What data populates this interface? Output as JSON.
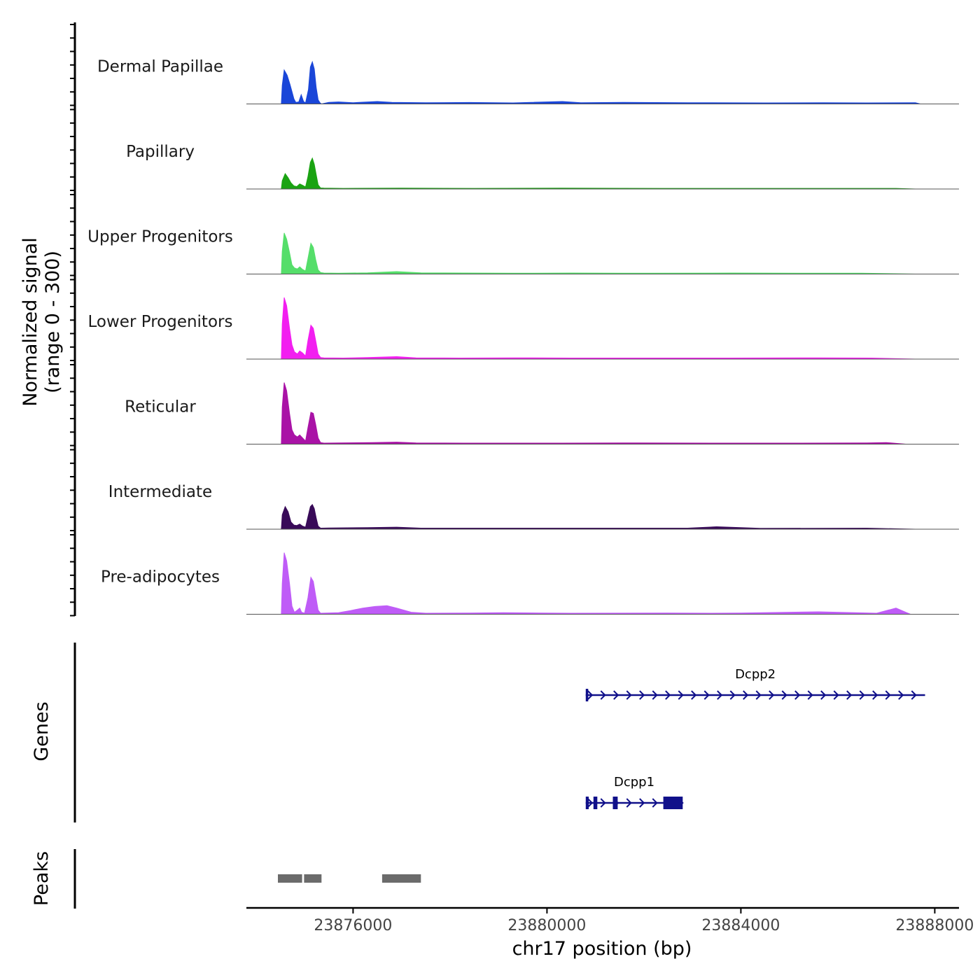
{
  "chart_data": {
    "type": "area",
    "title": "",
    "chromosome": "chr17",
    "xlabel": "chr17 position (bp)",
    "ylabel_line1": "Normalized signal",
    "ylabel_line2": "(range 0 - 300)",
    "ylim": [
      0,
      300
    ],
    "xlim": [
      23873800,
      23888500
    ],
    "x_ticks": [
      23876000,
      23880000,
      23884000,
      23888000
    ],
    "x_tick_labels": [
      "23876000",
      "23880000",
      "23884000",
      "23888000"
    ],
    "series": [
      {
        "name": "Dermal Papillae",
        "color": "#1a46d8",
        "points": [
          [
            23874520,
            0
          ],
          [
            23874540,
            90
          ],
          [
            23874580,
            165
          ],
          [
            23874640,
            140
          ],
          [
            23874700,
            95
          ],
          [
            23874740,
            60
          ],
          [
            23874780,
            25
          ],
          [
            23874820,
            8
          ],
          [
            23874880,
            10
          ],
          [
            23874930,
            45
          ],
          [
            23874980,
            12
          ],
          [
            23875020,
            5
          ],
          [
            23875080,
            70
          ],
          [
            23875120,
            180
          ],
          [
            23875160,
            205
          ],
          [
            23875200,
            170
          ],
          [
            23875240,
            80
          ],
          [
            23875280,
            20
          ],
          [
            23875320,
            5
          ],
          [
            23875350,
            0
          ],
          [
            23875500,
            8
          ],
          [
            23875700,
            10
          ],
          [
            23876000,
            6
          ],
          [
            23876500,
            12
          ],
          [
            23876800,
            8
          ],
          [
            23877500,
            6
          ],
          [
            23878400,
            7
          ],
          [
            23879300,
            5
          ],
          [
            23880320,
            12
          ],
          [
            23880700,
            6
          ],
          [
            23881600,
            8
          ],
          [
            23882900,
            6
          ],
          [
            23884500,
            5
          ],
          [
            23885700,
            6
          ],
          [
            23886600,
            5
          ],
          [
            23887600,
            6
          ],
          [
            23887700,
            0
          ]
        ]
      },
      {
        "name": "Papillary",
        "color": "#1aa312",
        "points": [
          [
            23874520,
            0
          ],
          [
            23874540,
            40
          ],
          [
            23874600,
            75
          ],
          [
            23874660,
            55
          ],
          [
            23874720,
            30
          ],
          [
            23874780,
            15
          ],
          [
            23874840,
            12
          ],
          [
            23874900,
            25
          ],
          [
            23874960,
            18
          ],
          [
            23875020,
            10
          ],
          [
            23875070,
            60
          ],
          [
            23875120,
            130
          ],
          [
            23875160,
            150
          ],
          [
            23875200,
            120
          ],
          [
            23875240,
            70
          ],
          [
            23875280,
            20
          ],
          [
            23875330,
            5
          ],
          [
            23875400,
            4
          ],
          [
            23875800,
            3
          ],
          [
            23877000,
            4
          ],
          [
            23878500,
            3
          ],
          [
            23880300,
            4
          ],
          [
            23882400,
            3
          ],
          [
            23884000,
            3
          ],
          [
            23885700,
            3
          ],
          [
            23887200,
            3
          ],
          [
            23887600,
            0
          ]
        ]
      },
      {
        "name": "Upper Progenitors",
        "color": "#55de6a",
        "points": [
          [
            23874520,
            0
          ],
          [
            23874540,
            110
          ],
          [
            23874580,
            200
          ],
          [
            23874630,
            170
          ],
          [
            23874690,
            105
          ],
          [
            23874740,
            45
          ],
          [
            23874790,
            30
          ],
          [
            23874850,
            25
          ],
          [
            23874900,
            35
          ],
          [
            23874960,
            22
          ],
          [
            23875020,
            15
          ],
          [
            23875070,
            75
          ],
          [
            23875130,
            150
          ],
          [
            23875180,
            130
          ],
          [
            23875230,
            70
          ],
          [
            23875280,
            20
          ],
          [
            23875330,
            8
          ],
          [
            23875400,
            5
          ],
          [
            23875700,
            4
          ],
          [
            23876300,
            6
          ],
          [
            23876900,
            12
          ],
          [
            23877400,
            6
          ],
          [
            23878300,
            5
          ],
          [
            23879300,
            4
          ],
          [
            23880500,
            5
          ],
          [
            23882100,
            4
          ],
          [
            23883800,
            5
          ],
          [
            23885200,
            4
          ],
          [
            23886500,
            4
          ],
          [
            23887600,
            0
          ]
        ]
      },
      {
        "name": "Lower Progenitors",
        "color": "#f21ff0",
        "points": [
          [
            23874520,
            0
          ],
          [
            23874540,
            170
          ],
          [
            23874580,
            300
          ],
          [
            23874630,
            260
          ],
          [
            23874690,
            150
          ],
          [
            23874740,
            70
          ],
          [
            23874790,
            35
          ],
          [
            23874850,
            25
          ],
          [
            23874900,
            40
          ],
          [
            23874960,
            30
          ],
          [
            23875020,
            15
          ],
          [
            23875070,
            90
          ],
          [
            23875130,
            165
          ],
          [
            23875180,
            150
          ],
          [
            23875230,
            90
          ],
          [
            23875280,
            25
          ],
          [
            23875330,
            8
          ],
          [
            23875400,
            6
          ],
          [
            23875800,
            5
          ],
          [
            23876300,
            8
          ],
          [
            23876900,
            12
          ],
          [
            23877300,
            6
          ],
          [
            23878200,
            5
          ],
          [
            23879300,
            6
          ],
          [
            23880500,
            5
          ],
          [
            23882200,
            5
          ],
          [
            23883700,
            5
          ],
          [
            23885600,
            6
          ],
          [
            23886700,
            5
          ],
          [
            23887600,
            0
          ]
        ]
      },
      {
        "name": "Reticular",
        "color": "#a913a6",
        "points": [
          [
            23874520,
            0
          ],
          [
            23874540,
            180
          ],
          [
            23874580,
            300
          ],
          [
            23874630,
            260
          ],
          [
            23874690,
            150
          ],
          [
            23874740,
            70
          ],
          [
            23874790,
            45
          ],
          [
            23874850,
            35
          ],
          [
            23874900,
            45
          ],
          [
            23874960,
            30
          ],
          [
            23875020,
            15
          ],
          [
            23875070,
            80
          ],
          [
            23875130,
            155
          ],
          [
            23875180,
            150
          ],
          [
            23875230,
            95
          ],
          [
            23875280,
            30
          ],
          [
            23875330,
            8
          ],
          [
            23875400,
            5
          ],
          [
            23875700,
            6
          ],
          [
            23876400,
            8
          ],
          [
            23876900,
            10
          ],
          [
            23877300,
            6
          ],
          [
            23878300,
            5
          ],
          [
            23879300,
            5
          ],
          [
            23880300,
            5
          ],
          [
            23881900,
            6
          ],
          [
            23883600,
            5
          ],
          [
            23885200,
            5
          ],
          [
            23886600,
            6
          ],
          [
            23887000,
            8
          ],
          [
            23887400,
            0
          ]
        ]
      },
      {
        "name": "Intermediate",
        "color": "#380a58",
        "points": [
          [
            23874520,
            0
          ],
          [
            23874540,
            70
          ],
          [
            23874600,
            110
          ],
          [
            23874660,
            85
          ],
          [
            23874720,
            35
          ],
          [
            23874780,
            20
          ],
          [
            23874840,
            18
          ],
          [
            23874900,
            25
          ],
          [
            23874960,
            15
          ],
          [
            23875020,
            10
          ],
          [
            23875070,
            60
          ],
          [
            23875120,
            110
          ],
          [
            23875160,
            120
          ],
          [
            23875200,
            100
          ],
          [
            23875240,
            55
          ],
          [
            23875280,
            15
          ],
          [
            23875330,
            5
          ],
          [
            23875500,
            6
          ],
          [
            23876300,
            8
          ],
          [
            23876900,
            10
          ],
          [
            23877400,
            5
          ],
          [
            23878400,
            5
          ],
          [
            23879800,
            5
          ],
          [
            23881300,
            5
          ],
          [
            23882900,
            5
          ],
          [
            23883500,
            12
          ],
          [
            23884400,
            4
          ],
          [
            23886600,
            5
          ],
          [
            23887600,
            0
          ]
        ]
      },
      {
        "name": "Pre-adipocytes",
        "color": "#bf5cf7",
        "points": [
          [
            23874520,
            0
          ],
          [
            23874540,
            150
          ],
          [
            23874580,
            300
          ],
          [
            23874630,
            260
          ],
          [
            23874690,
            150
          ],
          [
            23874740,
            40
          ],
          [
            23874790,
            10
          ],
          [
            23874850,
            20
          ],
          [
            23874900,
            30
          ],
          [
            23874940,
            10
          ],
          [
            23875000,
            5
          ],
          [
            23875070,
            80
          ],
          [
            23875130,
            180
          ],
          [
            23875180,
            160
          ],
          [
            23875230,
            90
          ],
          [
            23875280,
            20
          ],
          [
            23875330,
            5
          ],
          [
            23875700,
            8
          ],
          [
            23875950,
            18
          ],
          [
            23876200,
            30
          ],
          [
            23876450,
            38
          ],
          [
            23876700,
            42
          ],
          [
            23876900,
            30
          ],
          [
            23877200,
            10
          ],
          [
            23877500,
            5
          ],
          [
            23878400,
            6
          ],
          [
            23879100,
            8
          ],
          [
            23879900,
            6
          ],
          [
            23880500,
            5
          ],
          [
            23882500,
            6
          ],
          [
            23883400,
            5
          ],
          [
            23884000,
            6
          ],
          [
            23885600,
            12
          ],
          [
            23886800,
            5
          ],
          [
            23887200,
            30
          ],
          [
            23887400,
            10
          ],
          [
            23887500,
            0
          ]
        ]
      }
    ],
    "genes_label": "Genes",
    "genes": [
      {
        "name": "Dcpp2",
        "start": 23880800,
        "end": 23887800,
        "strand": "+",
        "exons": [
          [
            23880800,
            23880850
          ]
        ]
      },
      {
        "name": "Dcpp1",
        "start": 23880800,
        "end": 23882800,
        "strand": "+",
        "exons": [
          [
            23880800,
            23880860
          ],
          [
            23880960,
            23881040
          ],
          [
            23881360,
            23881460
          ],
          [
            23882400,
            23882800
          ]
        ]
      }
    ],
    "peaks_label": "Peaks",
    "peaks": [
      [
        23874450,
        23874950
      ],
      [
        23874990,
        23875350
      ],
      [
        23876600,
        23877400
      ]
    ]
  }
}
